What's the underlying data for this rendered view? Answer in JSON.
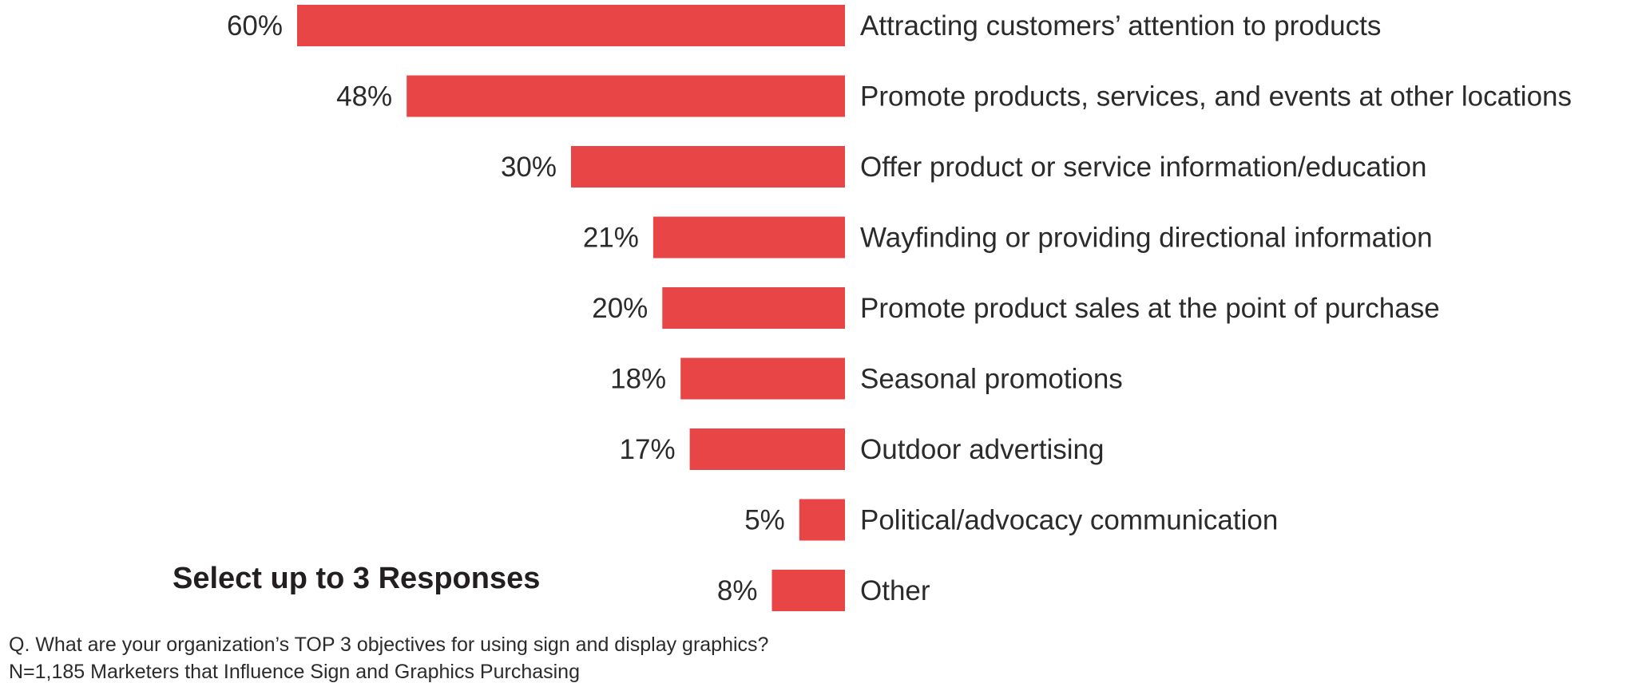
{
  "colors": {
    "bar": "#e84646",
    "text": "#2b2b2b"
  },
  "chart_data": {
    "type": "bar",
    "orientation": "horizontal",
    "value_unit": "%",
    "categories": [
      "Attracting customers’ attention to products",
      "Promote products, services, and events at other locations",
      "Offer product or service information/education",
      "Wayfinding or providing directional information",
      "Promote product sales at the point of purchase",
      "Seasonal promotions",
      "Outdoor advertising",
      "Political/advocacy communication",
      "Other"
    ],
    "values": [
      60,
      48,
      30,
      21,
      20,
      18,
      17,
      5,
      8
    ],
    "value_labels": [
      "60%",
      "48%",
      "30%",
      "21%",
      "20%",
      "18%",
      "17%",
      "5%",
      "8%"
    ],
    "xlim": [
      0,
      60
    ],
    "grid": false,
    "legend": "none"
  },
  "instruction": "Select up to 3 Responses",
  "footnote": {
    "question": "Q. What are your organization’s TOP 3 objectives for using sign and display graphics?",
    "sample": "N=1,185 Marketers that Influence Sign and Graphics Purchasing"
  }
}
